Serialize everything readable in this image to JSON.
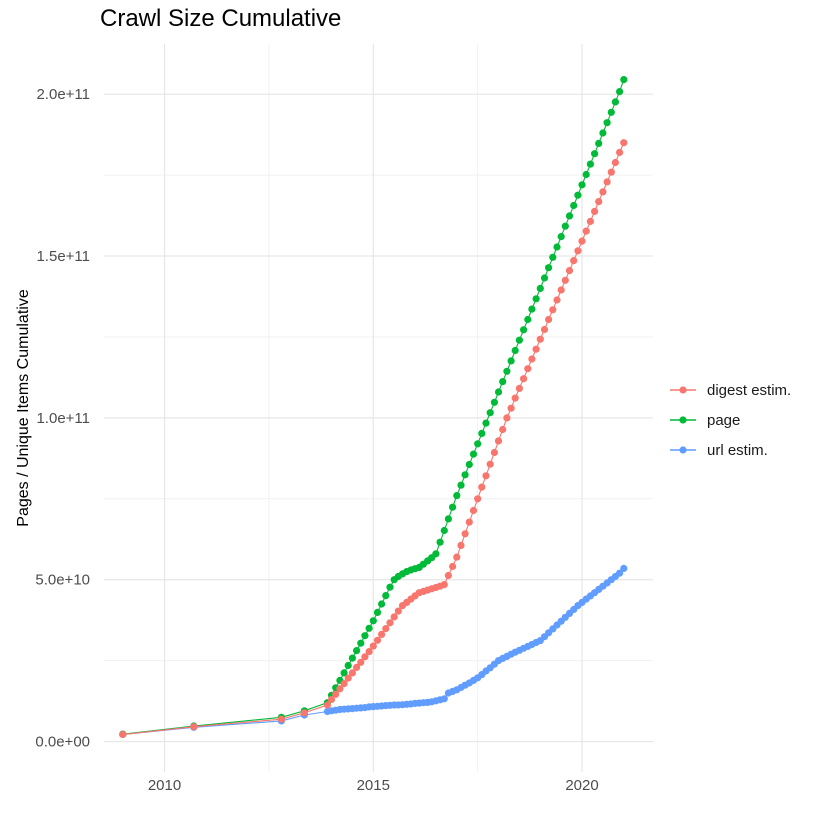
{
  "chart": {
    "title": "Crawl Size Cumulative",
    "y_axis_title": "Pages / Unique Items Cumulative",
    "legend": [
      {
        "label": "digest estim.",
        "series_index": 0
      },
      {
        "label": "page",
        "series_index": 1
      },
      {
        "label": "url estim.",
        "series_index": 2
      }
    ]
  },
  "colors": {
    "background": "#FFFFFF",
    "grid_major": "#E6E6E6",
    "grid_minor": "#F1F1F1",
    "tick_text": "#4D4D4D",
    "title_text": "#000000"
  },
  "chart_data": {
    "type": "line",
    "marker": "circle",
    "title": "Crawl Size Cumulative",
    "xlabel": "",
    "ylabel": "Pages / Unique Items Cumulative",
    "unit_note": "y values stored in billions; 1 unit = 1e9 pages/items",
    "grid": true,
    "legend_position": "right",
    "xlim": [
      2008.55,
      2021.7
    ],
    "ylim_billions": [
      -9.4,
      215.5
    ],
    "x_ticks": [
      {
        "value": 2010,
        "label": "2010"
      },
      {
        "value": 2015,
        "label": "2015"
      },
      {
        "value": 2020,
        "label": "2020"
      }
    ],
    "x_minor": [
      2012.5,
      2017.5
    ],
    "y_ticks": [
      {
        "value_billions": 0,
        "label": "0.0e+00"
      },
      {
        "value_billions": 50,
        "label": "5.0e+10"
      },
      {
        "value_billions": 100,
        "label": "1.0e+11"
      },
      {
        "value_billions": 150,
        "label": "1.5e+11"
      },
      {
        "value_billions": 200,
        "label": "2.0e+11"
      }
    ],
    "y_minor_billions": [
      25,
      75,
      125,
      175
    ],
    "draw_order": [
      2,
      1,
      0
    ],
    "series": [
      {
        "name": "digest estim.",
        "color": "#F8766D",
        "points": [
          [
            2009.0,
            2.2
          ],
          [
            2010.7,
            4.6
          ],
          [
            2012.8,
            6.9
          ],
          [
            2013.35,
            8.9
          ],
          [
            2013.9,
            11.3
          ],
          [
            2014.0,
            13.0
          ],
          [
            2014.1,
            14.6
          ],
          [
            2014.2,
            16.3
          ],
          [
            2014.3,
            17.9
          ],
          [
            2014.4,
            19.6
          ],
          [
            2014.5,
            21.2
          ],
          [
            2014.6,
            22.9
          ],
          [
            2014.7,
            24.5
          ],
          [
            2014.8,
            26.2
          ],
          [
            2014.9,
            27.8
          ],
          [
            2015.0,
            29.5
          ],
          [
            2015.1,
            31.3
          ],
          [
            2015.2,
            33.1
          ],
          [
            2015.3,
            34.9
          ],
          [
            2015.4,
            36.7
          ],
          [
            2015.5,
            38.5
          ],
          [
            2015.6,
            40.3
          ],
          [
            2015.7,
            42.0
          ],
          [
            2015.8,
            43.0
          ],
          [
            2015.9,
            44.0
          ],
          [
            2016.0,
            45.0
          ],
          [
            2016.1,
            46.0
          ],
          [
            2016.2,
            46.4
          ],
          [
            2016.3,
            46.8
          ],
          [
            2016.4,
            47.2
          ],
          [
            2016.5,
            47.6
          ],
          [
            2016.6,
            48.0
          ],
          [
            2016.7,
            48.5
          ],
          [
            2016.8,
            51.3
          ],
          [
            2016.9,
            54.1
          ],
          [
            2017.0,
            57.0
          ],
          [
            2017.1,
            60.6
          ],
          [
            2017.2,
            64.2
          ],
          [
            2017.3,
            67.8
          ],
          [
            2017.4,
            71.4
          ],
          [
            2017.5,
            75.0
          ],
          [
            2017.6,
            78.6
          ],
          [
            2017.7,
            82.1
          ],
          [
            2017.8,
            85.7
          ],
          [
            2017.9,
            89.3
          ],
          [
            2018.0,
            92.9
          ],
          [
            2018.1,
            96.4
          ],
          [
            2018.2,
            100.0
          ],
          [
            2018.3,
            103.0
          ],
          [
            2018.4,
            106.1
          ],
          [
            2018.5,
            109.1
          ],
          [
            2018.6,
            112.1
          ],
          [
            2018.7,
            115.2
          ],
          [
            2018.8,
            118.2
          ],
          [
            2018.9,
            121.2
          ],
          [
            2019.0,
            124.3
          ],
          [
            2019.1,
            127.3
          ],
          [
            2019.2,
            130.4
          ],
          [
            2019.3,
            133.4
          ],
          [
            2019.4,
            136.4
          ],
          [
            2019.5,
            139.5
          ],
          [
            2019.6,
            142.5
          ],
          [
            2019.7,
            145.5
          ],
          [
            2019.8,
            148.6
          ],
          [
            2019.9,
            151.6
          ],
          [
            2020.0,
            154.6
          ],
          [
            2020.1,
            157.7
          ],
          [
            2020.2,
            160.7
          ],
          [
            2020.3,
            163.8
          ],
          [
            2020.4,
            166.8
          ],
          [
            2020.5,
            169.8
          ],
          [
            2020.6,
            172.9
          ],
          [
            2020.7,
            175.9
          ],
          [
            2020.8,
            178.9
          ],
          [
            2020.9,
            182.0
          ],
          [
            2021.0,
            185.0
          ]
        ]
      },
      {
        "name": "page",
        "color": "#00BA38",
        "points": [
          [
            2009.0,
            2.3
          ],
          [
            2010.7,
            4.8
          ],
          [
            2012.8,
            7.5
          ],
          [
            2013.35,
            9.5
          ],
          [
            2013.9,
            12.0
          ],
          [
            2014.0,
            14.3
          ],
          [
            2014.1,
            16.6
          ],
          [
            2014.2,
            18.9
          ],
          [
            2014.3,
            21.2
          ],
          [
            2014.4,
            23.5
          ],
          [
            2014.5,
            25.8
          ],
          [
            2014.6,
            28.1
          ],
          [
            2014.7,
            30.4
          ],
          [
            2014.8,
            32.7
          ],
          [
            2014.9,
            35.0
          ],
          [
            2015.0,
            37.3
          ],
          [
            2015.1,
            39.9
          ],
          [
            2015.2,
            42.5
          ],
          [
            2015.3,
            45.1
          ],
          [
            2015.4,
            47.7
          ],
          [
            2015.5,
            50.0
          ],
          [
            2015.6,
            51.0
          ],
          [
            2015.7,
            51.8
          ],
          [
            2015.8,
            52.5
          ],
          [
            2015.9,
            53.0
          ],
          [
            2016.0,
            53.4
          ],
          [
            2016.1,
            53.8
          ],
          [
            2016.2,
            54.8
          ],
          [
            2016.3,
            55.8
          ],
          [
            2016.4,
            56.8
          ],
          [
            2016.5,
            58.0
          ],
          [
            2016.6,
            61.6
          ],
          [
            2016.7,
            65.2
          ],
          [
            2016.8,
            68.8
          ],
          [
            2016.9,
            72.4
          ],
          [
            2017.0,
            76.0
          ],
          [
            2017.1,
            79.2
          ],
          [
            2017.2,
            82.4
          ],
          [
            2017.3,
            85.6
          ],
          [
            2017.4,
            88.8
          ],
          [
            2017.5,
            92.0
          ],
          [
            2017.6,
            95.2
          ],
          [
            2017.7,
            98.4
          ],
          [
            2017.8,
            101.6
          ],
          [
            2017.9,
            104.8
          ],
          [
            2018.0,
            108.0
          ],
          [
            2018.1,
            111.2
          ],
          [
            2018.2,
            114.4
          ],
          [
            2018.3,
            117.6
          ],
          [
            2018.4,
            120.8
          ],
          [
            2018.5,
            124.0
          ],
          [
            2018.6,
            127.2
          ],
          [
            2018.7,
            130.4
          ],
          [
            2018.8,
            133.6
          ],
          [
            2018.9,
            136.8
          ],
          [
            2019.0,
            140.0
          ],
          [
            2019.1,
            143.2
          ],
          [
            2019.2,
            146.4
          ],
          [
            2019.3,
            149.6
          ],
          [
            2019.4,
            152.8
          ],
          [
            2019.5,
            156.0
          ],
          [
            2019.6,
            159.2
          ],
          [
            2019.7,
            162.4
          ],
          [
            2019.8,
            165.6
          ],
          [
            2019.9,
            168.8
          ],
          [
            2020.0,
            172.0
          ],
          [
            2020.1,
            175.2
          ],
          [
            2020.2,
            178.4
          ],
          [
            2020.3,
            181.6
          ],
          [
            2020.4,
            184.8
          ],
          [
            2020.5,
            188.0
          ],
          [
            2020.6,
            191.2
          ],
          [
            2020.7,
            194.4
          ],
          [
            2020.8,
            197.6
          ],
          [
            2020.9,
            200.8
          ],
          [
            2021.0,
            204.5
          ]
        ]
      },
      {
        "name": "url estim.",
        "color": "#619CFF",
        "points": [
          [
            2009.0,
            2.2
          ],
          [
            2010.7,
            4.4
          ],
          [
            2012.8,
            6.4
          ],
          [
            2013.35,
            8.2
          ],
          [
            2013.9,
            9.3
          ],
          [
            2014.0,
            9.5
          ],
          [
            2014.1,
            9.7
          ],
          [
            2014.2,
            9.9
          ],
          [
            2014.3,
            10.0
          ],
          [
            2014.4,
            10.1
          ],
          [
            2014.5,
            10.2
          ],
          [
            2014.6,
            10.3
          ],
          [
            2014.7,
            10.4
          ],
          [
            2014.8,
            10.5
          ],
          [
            2014.9,
            10.7
          ],
          [
            2015.0,
            10.8
          ],
          [
            2015.1,
            10.9
          ],
          [
            2015.2,
            11.0
          ],
          [
            2015.3,
            11.1
          ],
          [
            2015.4,
            11.2
          ],
          [
            2015.5,
            11.3
          ],
          [
            2015.6,
            11.3
          ],
          [
            2015.7,
            11.4
          ],
          [
            2015.8,
            11.5
          ],
          [
            2015.9,
            11.6
          ],
          [
            2016.0,
            11.8
          ],
          [
            2016.1,
            11.9
          ],
          [
            2016.2,
            12.0
          ],
          [
            2016.3,
            12.1
          ],
          [
            2016.4,
            12.3
          ],
          [
            2016.5,
            12.6
          ],
          [
            2016.6,
            12.9
          ],
          [
            2016.7,
            13.2
          ],
          [
            2016.8,
            15.0
          ],
          [
            2016.9,
            15.5
          ],
          [
            2017.0,
            16.0
          ],
          [
            2017.1,
            16.7
          ],
          [
            2017.2,
            17.4
          ],
          [
            2017.3,
            18.1
          ],
          [
            2017.4,
            18.9
          ],
          [
            2017.5,
            19.7
          ],
          [
            2017.6,
            20.7
          ],
          [
            2017.7,
            21.8
          ],
          [
            2017.8,
            22.8
          ],
          [
            2017.9,
            23.9
          ],
          [
            2018.0,
            25.0
          ],
          [
            2018.1,
            25.7
          ],
          [
            2018.2,
            26.3
          ],
          [
            2018.3,
            27.0
          ],
          [
            2018.4,
            27.6
          ],
          [
            2018.5,
            28.2
          ],
          [
            2018.6,
            28.8
          ],
          [
            2018.7,
            29.4
          ],
          [
            2018.8,
            30.0
          ],
          [
            2018.9,
            30.6
          ],
          [
            2019.0,
            31.2
          ],
          [
            2019.1,
            32.4
          ],
          [
            2019.2,
            33.6
          ],
          [
            2019.3,
            34.8
          ],
          [
            2019.4,
            36.0
          ],
          [
            2019.5,
            37.2
          ],
          [
            2019.6,
            38.4
          ],
          [
            2019.7,
            39.6
          ],
          [
            2019.8,
            40.8
          ],
          [
            2019.9,
            42.0
          ],
          [
            2020.0,
            43.0
          ],
          [
            2020.1,
            44.0
          ],
          [
            2020.2,
            45.0
          ],
          [
            2020.3,
            46.0
          ],
          [
            2020.4,
            47.0
          ],
          [
            2020.5,
            48.0
          ],
          [
            2020.6,
            49.0
          ],
          [
            2020.7,
            50.0
          ],
          [
            2020.8,
            51.0
          ],
          [
            2020.9,
            52.0
          ],
          [
            2021.0,
            53.5
          ]
        ]
      }
    ]
  }
}
